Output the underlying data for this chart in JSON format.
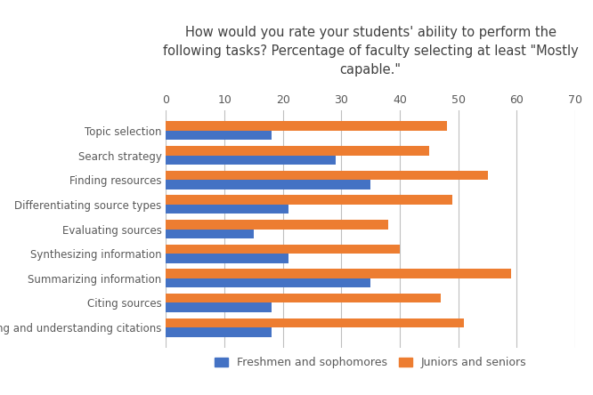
{
  "title": "How would you rate your students' ability to perform the\nfollowing tasks? Percentage of faculty selecting at least \"Mostly\ncapable.\"",
  "categories": [
    "Topic selection",
    "Search strategy",
    "Finding resources",
    "Differentiating source types",
    "Evaluating sources",
    "Synthesizing information",
    "Summarizing information",
    "Citing sources",
    "Reading and understanding citations"
  ],
  "freshmen_sophomores": [
    18,
    29,
    35,
    21,
    15,
    21,
    35,
    18,
    18
  ],
  "juniors_seniors": [
    48,
    45,
    55,
    49,
    38,
    40,
    59,
    47,
    51
  ],
  "color_fresh": "#4472C4",
  "color_juniors": "#ED7D31",
  "xlim": [
    0,
    70
  ],
  "xticks": [
    0,
    10,
    20,
    30,
    40,
    50,
    60,
    70
  ],
  "legend_labels": [
    "Freshmen and sophomores",
    "Juniors and seniors"
  ],
  "background_color": "#FFFFFF",
  "bar_height": 0.38,
  "grid_color": "#BFBFBF",
  "title_fontsize": 10.5,
  "label_fontsize": 8.5,
  "tick_fontsize": 9
}
